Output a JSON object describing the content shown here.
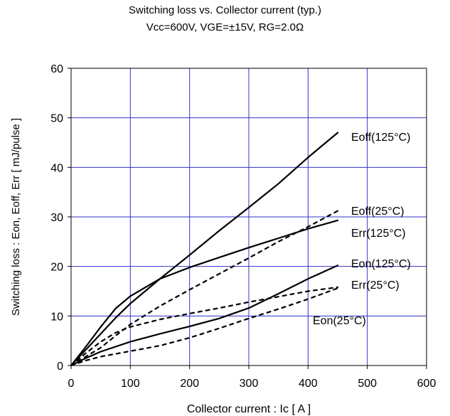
{
  "chart_data": {
    "type": "line",
    "title": "Switching loss vs. Collector current (typ.)",
    "subtitle": "Vcc=600V, VGE=±15V, RG=2.0Ω",
    "xlabel": "Collector current : Ic [ A ]",
    "ylabel": "Switching loss : Eon, Eoff, Err [ mJ/pulse ]",
    "xlim": [
      0,
      600
    ],
    "ylim": [
      0,
      60
    ],
    "xticks": [
      "0",
      "100",
      "200",
      "300",
      "400",
      "500",
      "600"
    ],
    "yticks": [
      "0",
      "10",
      "20",
      "30",
      "40",
      "50",
      "60"
    ],
    "grid": true,
    "grid_color": "#3333cc",
    "series": [
      {
        "name": "Eoff(125°C)",
        "style": "solid",
        "x": [
          0,
          25,
          50,
          75,
          100,
          150,
          200,
          250,
          300,
          350,
          400,
          450
        ],
        "y": [
          0,
          3.2,
          6.4,
          9.6,
          12.5,
          17.5,
          22.3,
          27.2,
          31.9,
          36.7,
          42.0,
          47.0
        ]
      },
      {
        "name": "Eoff(25°C)",
        "style": "dashed",
        "x": [
          0,
          25,
          50,
          75,
          100,
          150,
          200,
          250,
          300,
          350,
          400,
          450
        ],
        "y": [
          0,
          1.8,
          3.6,
          6.0,
          8.3,
          12.0,
          15.3,
          18.5,
          21.7,
          25.0,
          28.0,
          31.2
        ]
      },
      {
        "name": "Err(125°C)",
        "style": "solid",
        "x": [
          0,
          25,
          50,
          75,
          100,
          150,
          200,
          250,
          300,
          350,
          400,
          450
        ],
        "y": [
          0,
          3.8,
          7.8,
          11.5,
          14.0,
          17.5,
          19.8,
          21.8,
          23.8,
          25.7,
          27.6,
          29.3
        ]
      },
      {
        "name": "Eon(125°C)",
        "style": "solid",
        "x": [
          0,
          25,
          50,
          100,
          150,
          200,
          250,
          300,
          350,
          400,
          450
        ],
        "y": [
          0,
          1.5,
          2.8,
          4.8,
          6.4,
          7.9,
          9.5,
          11.6,
          14.5,
          17.5,
          20.2
        ]
      },
      {
        "name": "Err(25°C)",
        "style": "dashed",
        "x": [
          0,
          25,
          50,
          75,
          100,
          150,
          200,
          250,
          300,
          350,
          400,
          450
        ],
        "y": [
          0,
          2.5,
          4.8,
          6.6,
          7.8,
          9.3,
          10.5,
          11.6,
          12.8,
          13.9,
          15.0,
          15.8
        ]
      },
      {
        "name": "Eon(25°C)",
        "style": "dashed",
        "x": [
          0,
          25,
          50,
          100,
          150,
          200,
          250,
          300,
          350,
          400,
          450
        ],
        "y": [
          0,
          1.0,
          1.8,
          2.9,
          4.0,
          5.6,
          7.5,
          9.5,
          11.4,
          13.4,
          15.6
        ]
      }
    ]
  }
}
